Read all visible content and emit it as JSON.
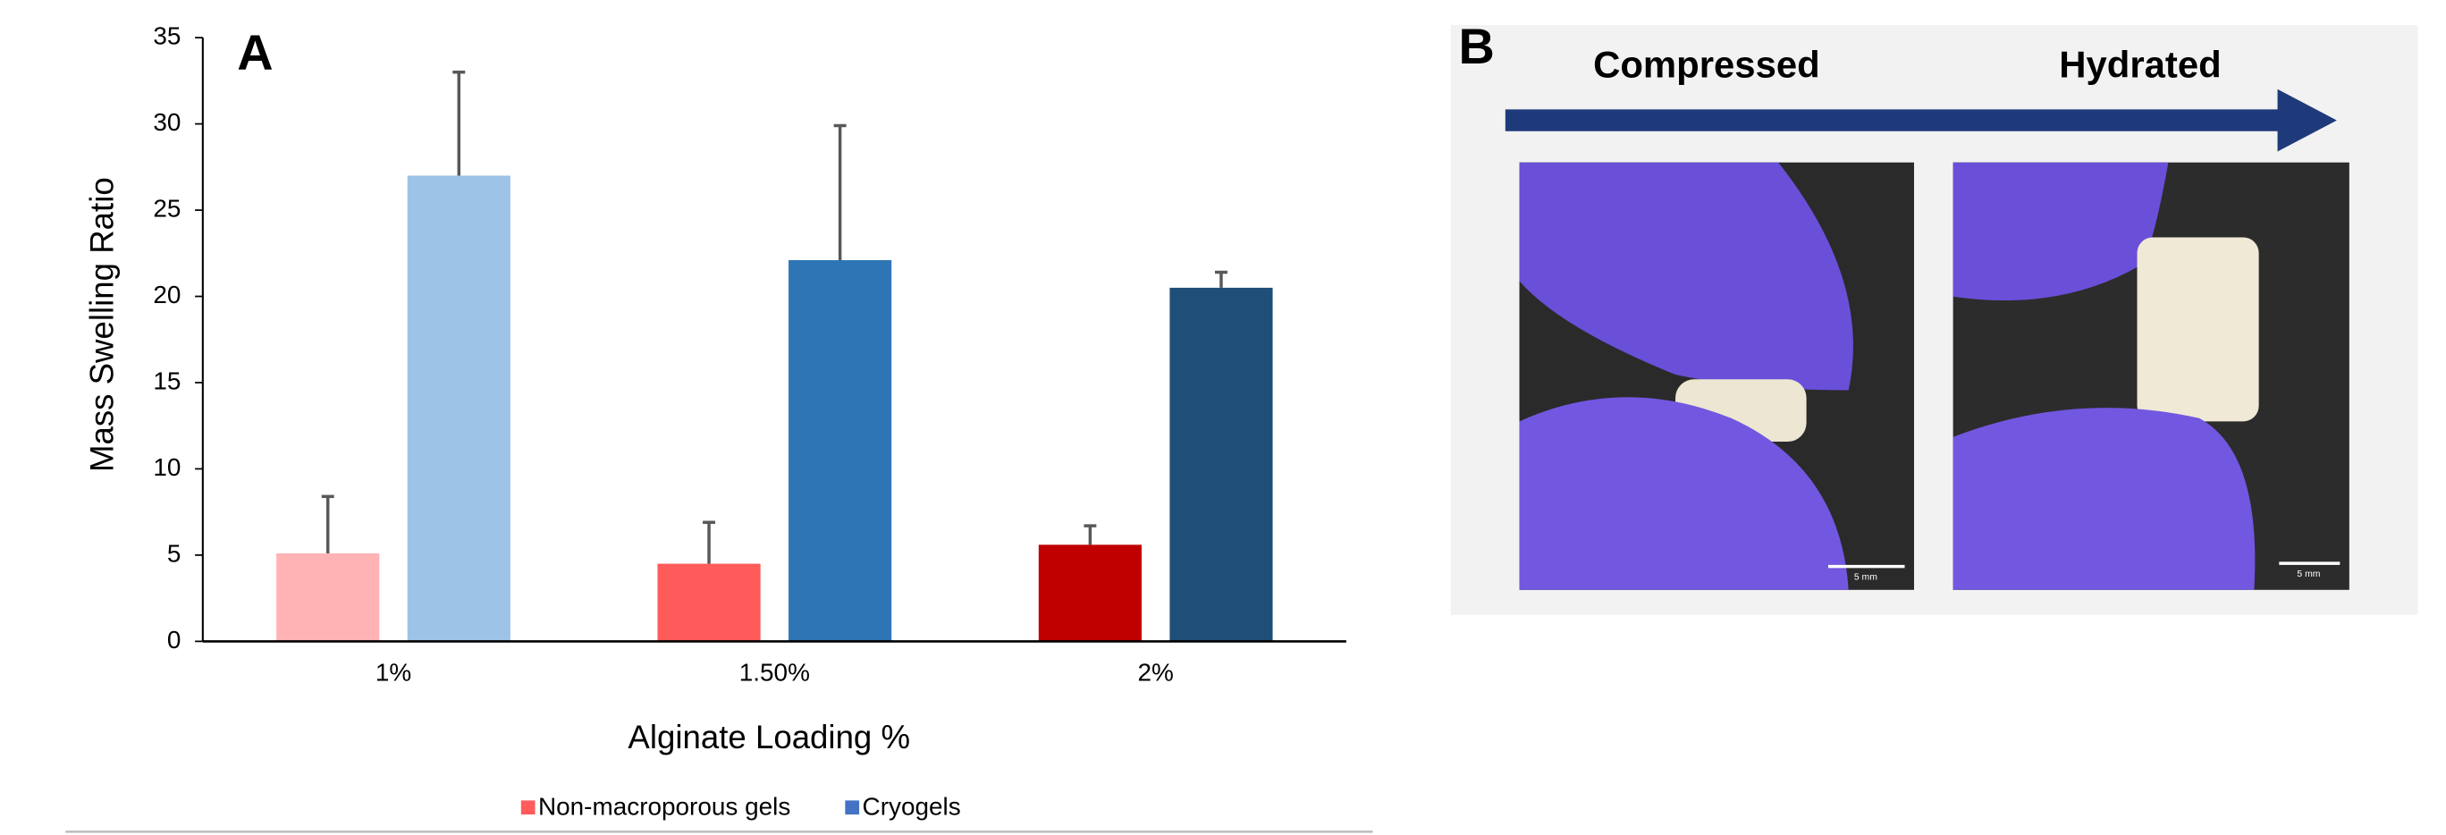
{
  "chart_data": {
    "type": "bar",
    "panel_label": "A",
    "x_label": "Alginate Loading %",
    "y_label": "Mass Swelling Ratio",
    "categories": [
      "1%",
      "1.50%",
      "2%"
    ],
    "series": [
      {
        "name": "Non-macroporous gels",
        "color": "#ff5b5b",
        "colors": [
          "#ffb3b5",
          "#ff5b5b",
          "#c00000"
        ],
        "values": [
          5.1,
          4.5,
          5.6
        ],
        "errors": [
          3.3,
          2.4,
          1.1
        ]
      },
      {
        "name": "Cryogels",
        "color": "#4472c4",
        "colors": [
          "#9dc3e6",
          "#2e75b6",
          "#1f4e79"
        ],
        "values": [
          27,
          22.1,
          20.5
        ],
        "errors": [
          6,
          7.8,
          0.9
        ]
      }
    ],
    "ylim": [
      0,
      35
    ],
    "yticks": [
      0,
      5,
      10,
      15,
      20,
      25,
      30,
      35
    ],
    "grid": false,
    "legend": "bottom"
  },
  "panel_b": {
    "label": "B",
    "steps": [
      "Compressed",
      "Hydrated"
    ],
    "scale_bars": [
      "5 mm",
      "5 mm"
    ]
  }
}
